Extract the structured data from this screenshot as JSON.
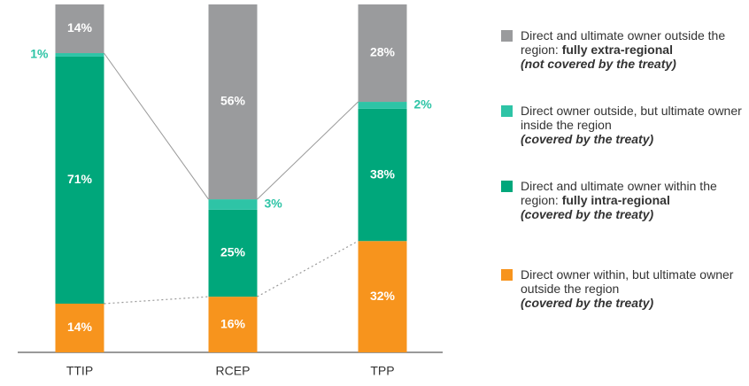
{
  "chart_data": {
    "type": "stacked_bar",
    "categories": [
      "TTIP",
      "RCEP",
      "TPP"
    ],
    "series": [
      {
        "name": "Direct owner within, but ultimate owner outside the region",
        "name_bold": null,
        "note": "(covered by the treaty)",
        "color": "#f7941d",
        "values": [
          14,
          16,
          32
        ],
        "value_labels": [
          "14%",
          "16%",
          "32%"
        ]
      },
      {
        "name": "Direct and ultimate owner within the region:",
        "name_bold": "fully intra-regional",
        "note": "(covered by the treaty)",
        "color": "#00a77b",
        "values": [
          71,
          25,
          38
        ],
        "value_labels": [
          "71%",
          "25%",
          "38%"
        ]
      },
      {
        "name": "Direct owner outside, but ultimate owner inside the region",
        "name_bold": null,
        "note": "(covered by the treaty)",
        "color": "#2ec4a6",
        "values": [
          1,
          3,
          2
        ],
        "value_labels": [
          "1%",
          "3%",
          "2%"
        ]
      },
      {
        "name": "Direct and ultimate owner outside the region:",
        "name_bold": "fully extra-regional",
        "note": "(not covered by the treaty)",
        "color": "#9a9b9d",
        "values": [
          14,
          56,
          28
        ],
        "value_labels": [
          "14%",
          "56%",
          "28%"
        ]
      }
    ],
    "ylim": [
      0,
      100
    ]
  }
}
